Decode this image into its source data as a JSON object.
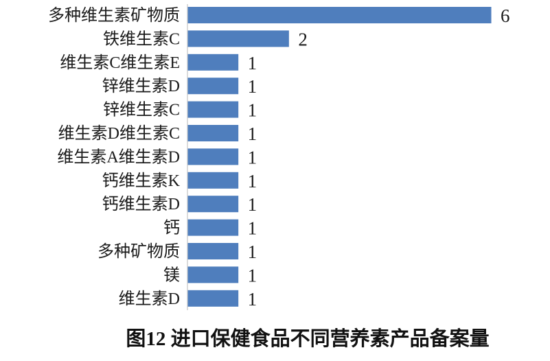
{
  "chart_data": {
    "type": "bar",
    "orientation": "horizontal",
    "title": "图12 进口保健食品不同营养素产品备案量",
    "categories": [
      "多种维生素矿物质",
      "铁维生素C",
      "维生素C维生素E",
      "锌维生素D",
      "锌维生素C",
      "维生素D维生素C",
      "维生素A维生素D",
      "钙维生素K",
      "钙维生素D",
      "钙",
      "多种矿物质",
      "镁",
      "维生素D"
    ],
    "values": [
      6,
      2,
      1,
      1,
      1,
      1,
      1,
      1,
      1,
      1,
      1,
      1,
      1
    ],
    "xlim": [
      0,
      6
    ],
    "grid": false,
    "data_labels": true,
    "bar_color": "#4f7ebd",
    "xlabel": "",
    "ylabel": ""
  }
}
